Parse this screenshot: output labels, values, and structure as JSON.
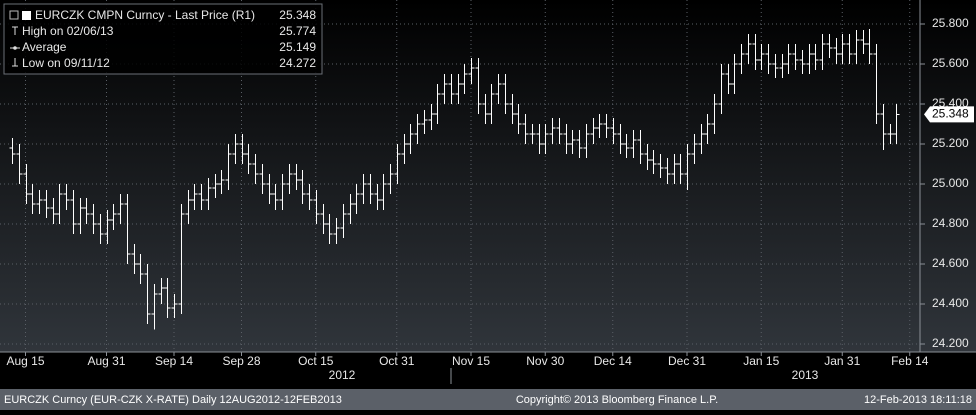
{
  "chart_data": {
    "type": "ohlc",
    "color": "#ffffff",
    "grid": true,
    "ylim": [
      24.16,
      25.92
    ],
    "yticks": [
      {
        "value": 24.2,
        "label": "24.200"
      },
      {
        "value": 24.4,
        "label": "24.400"
      },
      {
        "value": 24.6,
        "label": "24.600"
      },
      {
        "value": 24.8,
        "label": "24.800"
      },
      {
        "value": 25.0,
        "label": "25.000"
      },
      {
        "value": 25.2,
        "label": "25.200"
      },
      {
        "value": 25.4,
        "label": "25.400"
      },
      {
        "value": 25.6,
        "label": "25.600"
      },
      {
        "value": 25.8,
        "label": "25.800"
      }
    ],
    "xticks": [
      {
        "value": 2,
        "label": "Aug 15"
      },
      {
        "value": 14,
        "label": "Aug 31"
      },
      {
        "value": 24,
        "label": "Sep 14"
      },
      {
        "value": 34,
        "label": "Sep 28"
      },
      {
        "value": 45,
        "label": "Oct 15"
      },
      {
        "value": 57,
        "label": "Oct 31"
      },
      {
        "value": 68,
        "label": "Nov 15"
      },
      {
        "value": 79,
        "label": "Nov 30"
      },
      {
        "value": 89,
        "label": "Dec 14"
      },
      {
        "value": 100,
        "label": "Dec 31"
      },
      {
        "value": 111,
        "label": "Jan 15"
      },
      {
        "value": 123,
        "label": "Jan 31"
      },
      {
        "value": 133,
        "label": "Feb 14"
      }
    ],
    "year_labels": [
      "2012",
      "2013"
    ],
    "legend": [
      {
        "label": "EURCZK CMPN Curncy - Last Price (R1)",
        "value": 25.348
      },
      {
        "label": "High on 02/06/13",
        "value": 25.774
      },
      {
        "label": "Average",
        "value": 25.149
      },
      {
        "label": "Low on 09/11/12",
        "value": 24.272
      }
    ],
    "open": [
      25.18,
      25.15,
      25.05,
      24.95,
      24.9,
      24.92,
      24.88,
      24.85,
      24.95,
      24.92,
      24.8,
      24.88,
      24.85,
      24.8,
      24.75,
      24.82,
      24.85,
      24.9,
      24.65,
      24.6,
      24.55,
      24.35,
      24.45,
      24.48,
      24.38,
      24.4,
      24.85,
      24.92,
      24.95,
      24.92,
      24.98,
      25.0,
      25.02,
      25.15,
      25.2,
      25.15,
      25.1,
      25.05,
      25.0,
      24.95,
      24.92,
      25.0,
      25.05,
      25.02,
      24.95,
      24.92,
      24.85,
      24.8,
      24.75,
      24.78,
      24.85,
      24.9,
      24.95,
      25.0,
      24.95,
      24.92,
      25.0,
      25.05,
      25.15,
      25.2,
      25.25,
      25.3,
      25.32,
      25.35,
      25.45,
      25.5,
      25.45,
      25.5,
      25.55,
      25.58,
      25.4,
      25.35,
      25.45,
      25.5,
      25.4,
      25.35,
      25.3,
      25.25,
      25.25,
      25.2,
      25.25,
      25.28,
      25.25,
      25.2,
      25.22,
      25.18,
      25.25,
      25.28,
      25.3,
      25.28,
      25.25,
      25.2,
      25.18,
      25.22,
      25.15,
      25.12,
      25.1,
      25.08,
      25.05,
      25.1,
      25.05,
      25.15,
      25.2,
      25.25,
      25.3,
      25.4,
      25.55,
      25.5,
      25.6,
      25.65,
      25.7,
      25.62,
      25.65,
      25.6,
      25.58,
      25.6,
      25.65,
      25.62,
      25.6,
      25.65,
      25.62,
      25.7,
      25.68,
      25.65,
      25.7,
      25.65,
      25.72,
      25.7,
      25.65,
      25.35,
      25.25,
      25.25
    ],
    "high": [
      25.23,
      25.2,
      25.1,
      25.0,
      24.97,
      24.97,
      24.93,
      25.0,
      25.0,
      24.97,
      24.93,
      24.93,
      24.9,
      24.85,
      24.87,
      24.9,
      24.95,
      24.95,
      24.7,
      24.65,
      24.6,
      24.5,
      24.53,
      24.53,
      24.45,
      24.9,
      24.97,
      25.0,
      25.0,
      25.03,
      25.05,
      25.07,
      25.2,
      25.25,
      25.25,
      25.2,
      25.15,
      25.1,
      25.05,
      25.0,
      25.05,
      25.1,
      25.1,
      25.07,
      25.0,
      24.97,
      24.9,
      24.85,
      24.83,
      24.9,
      24.95,
      25.0,
      25.05,
      25.05,
      25.0,
      25.05,
      25.1,
      25.2,
      25.25,
      25.3,
      25.35,
      25.37,
      25.4,
      25.5,
      25.55,
      25.55,
      25.55,
      25.6,
      25.63,
      25.63,
      25.45,
      25.5,
      25.55,
      25.55,
      25.45,
      25.4,
      25.35,
      25.3,
      25.3,
      25.3,
      25.33,
      25.33,
      25.3,
      25.27,
      25.27,
      25.3,
      25.33,
      25.35,
      25.35,
      25.33,
      25.3,
      25.25,
      25.27,
      25.27,
      25.2,
      25.17,
      25.15,
      25.13,
      25.15,
      25.15,
      25.2,
      25.25,
      25.3,
      25.35,
      25.45,
      25.6,
      25.6,
      25.65,
      25.7,
      25.75,
      25.75,
      25.7,
      25.7,
      25.65,
      25.65,
      25.7,
      25.7,
      25.67,
      25.7,
      25.7,
      25.75,
      25.75,
      25.73,
      25.75,
      25.75,
      25.77,
      25.77,
      25.774,
      25.7,
      25.4,
      25.3,
      25.4
    ],
    "low": [
      25.1,
      25.0,
      24.9,
      24.85,
      24.85,
      24.83,
      24.8,
      24.8,
      24.87,
      24.75,
      24.75,
      24.8,
      24.75,
      24.7,
      24.7,
      24.77,
      24.8,
      24.6,
      24.55,
      24.5,
      24.3,
      24.272,
      24.4,
      24.33,
      24.33,
      24.35,
      24.8,
      24.87,
      24.87,
      24.87,
      24.93,
      24.95,
      24.97,
      25.1,
      25.1,
      25.05,
      25.0,
      24.95,
      24.9,
      24.87,
      24.87,
      24.95,
      24.97,
      24.9,
      24.87,
      24.8,
      24.75,
      24.7,
      24.7,
      24.73,
      24.8,
      24.85,
      24.9,
      24.9,
      24.87,
      24.87,
      24.95,
      25.0,
      25.1,
      25.15,
      25.2,
      25.25,
      25.27,
      25.3,
      25.4,
      25.4,
      25.4,
      25.45,
      25.5,
      25.35,
      25.3,
      25.3,
      25.4,
      25.35,
      25.3,
      25.25,
      25.2,
      25.2,
      25.15,
      25.15,
      25.2,
      25.2,
      25.15,
      25.15,
      25.13,
      25.13,
      25.2,
      25.23,
      25.23,
      25.2,
      25.15,
      25.13,
      25.13,
      25.1,
      25.07,
      25.05,
      25.03,
      25.0,
      25.0,
      25.0,
      24.97,
      25.1,
      25.15,
      25.2,
      25.25,
      25.35,
      25.45,
      25.45,
      25.55,
      25.6,
      25.57,
      25.57,
      25.55,
      25.53,
      25.53,
      25.55,
      25.57,
      25.55,
      25.55,
      25.57,
      25.57,
      25.63,
      25.6,
      25.6,
      25.6,
      25.6,
      25.65,
      25.6,
      25.3,
      25.17,
      25.2,
      25.2
    ],
    "close": [
      25.15,
      25.05,
      24.95,
      24.9,
      24.92,
      24.88,
      24.85,
      24.95,
      24.92,
      24.8,
      24.88,
      24.85,
      24.8,
      24.75,
      24.82,
      24.85,
      24.9,
      24.65,
      24.6,
      24.55,
      24.35,
      24.45,
      24.48,
      24.38,
      24.4,
      24.85,
      24.92,
      24.95,
      24.92,
      24.98,
      25.0,
      25.02,
      25.15,
      25.2,
      25.15,
      25.1,
      25.05,
      25.0,
      24.95,
      24.92,
      25.0,
      25.05,
      25.02,
      24.95,
      24.92,
      24.85,
      24.8,
      24.75,
      24.78,
      24.85,
      24.9,
      24.95,
      25.0,
      24.95,
      24.92,
      25.0,
      25.05,
      25.15,
      25.2,
      25.25,
      25.3,
      25.32,
      25.35,
      25.45,
      25.5,
      25.45,
      25.5,
      25.55,
      25.58,
      25.4,
      25.35,
      25.45,
      25.5,
      25.4,
      25.35,
      25.3,
      25.25,
      25.25,
      25.2,
      25.25,
      25.28,
      25.25,
      25.2,
      25.22,
      25.18,
      25.25,
      25.28,
      25.3,
      25.28,
      25.25,
      25.2,
      25.18,
      25.22,
      25.15,
      25.12,
      25.1,
      25.08,
      25.05,
      25.1,
      25.05,
      25.15,
      25.2,
      25.25,
      25.3,
      25.4,
      25.55,
      25.5,
      25.6,
      25.65,
      25.7,
      25.62,
      25.65,
      25.6,
      25.58,
      25.6,
      25.65,
      25.62,
      25.6,
      25.65,
      25.62,
      25.7,
      25.68,
      25.65,
      25.7,
      25.65,
      25.72,
      25.7,
      25.65,
      25.35,
      25.25,
      25.25,
      25.348
    ]
  },
  "footer": {
    "left": "EURCZK Curncy (EUR-CZK X-RATE)  Daily 12AUG2012-12FEB2013",
    "center": "Copyright© 2013 Bloomberg Finance L.P.",
    "right": "12-Feb-2013 18:11:18"
  }
}
